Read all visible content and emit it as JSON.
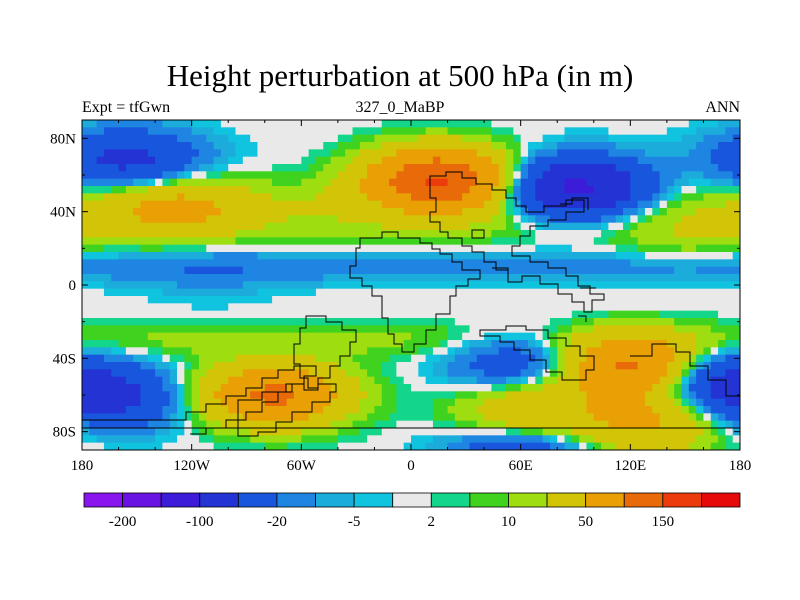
{
  "chart_data": {
    "type": "heatmap",
    "title": "Height perturbation at 500 hPa (in m)",
    "left_label": "Expt = tfGwn",
    "center_label": "327_0_MaBP",
    "right_label": "ANN",
    "x_ticks": [
      "180",
      "120W",
      "60W",
      "0",
      "60E",
      "120E",
      "180"
    ],
    "x_tick_values": [
      -180,
      -120,
      -60,
      0,
      60,
      120,
      180
    ],
    "y_ticks": [
      "80N",
      "40N",
      "0",
      "40S",
      "80S"
    ],
    "y_tick_values": [
      80,
      40,
      0,
      -40,
      -80
    ],
    "xlim": [
      -180,
      180
    ],
    "ylim": [
      -90,
      90
    ],
    "colorbar": {
      "levels": [
        -200,
        -150,
        -100,
        -50,
        -20,
        -10,
        -5,
        -2,
        2,
        5,
        10,
        20,
        50,
        100,
        150,
        200
      ],
      "labels": [
        "-200",
        "-100",
        "-20",
        "-5",
        "2",
        "10",
        "50",
        "150"
      ],
      "label_levels": [
        -200,
        -100,
        -20,
        -5,
        2,
        10,
        50,
        150
      ],
      "colors": [
        "#8a16ef",
        "#6a14e4",
        "#3c1cd9",
        "#2433d4",
        "#1857dd",
        "#1e85e2",
        "#1cacdb",
        "#10c4e0",
        "#e9e9e9",
        "#14d68a",
        "#3fd21e",
        "#9ede10",
        "#d2c406",
        "#e8a004",
        "#e86a08",
        "#ec3c0c",
        "#e60a0a"
      ]
    },
    "anomaly_centers": [
      {
        "lon": 15,
        "lat": 58,
        "value": 150
      },
      {
        "lon": -130,
        "lat": 42,
        "value": 50
      },
      {
        "lon": 130,
        "lat": -75,
        "value": 55
      },
      {
        "lon": -75,
        "lat": -60,
        "value": 110
      },
      {
        "lon": 122,
        "lat": -45,
        "value": 120
      },
      {
        "lon": 65,
        "lat": -70,
        "value": 50
      },
      {
        "lon": 90,
        "lat": 52,
        "value": -120
      },
      {
        "lon": -155,
        "lat": 68,
        "value": -60
      },
      {
        "lon": 160,
        "lat": -50,
        "value": -60
      },
      {
        "lon": -110,
        "lat": 5,
        "value": -8
      },
      {
        "lon": -165,
        "lat": -62,
        "value": -60
      },
      {
        "lon": 60,
        "lat": -42,
        "value": -40
      },
      {
        "lon": 60,
        "lat": -90,
        "value": -45
      },
      {
        "lon": 150,
        "lat": 25,
        "value": 12
      }
    ]
  }
}
